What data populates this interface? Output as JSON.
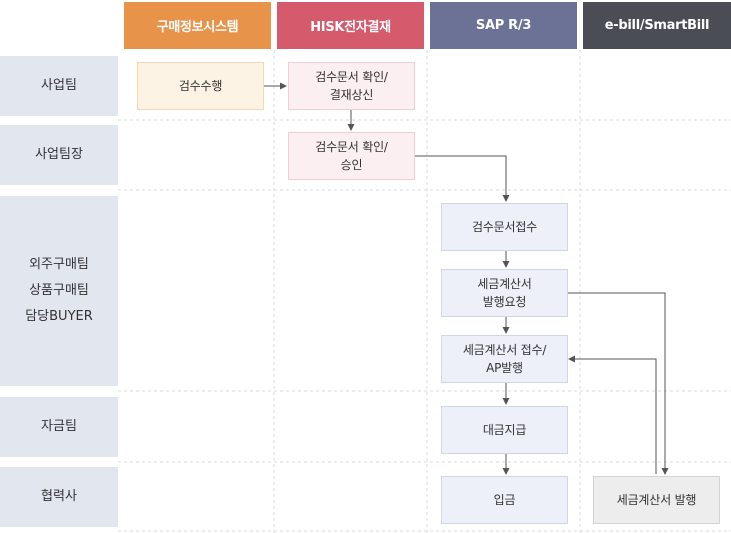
{
  "columns": [
    {
      "label": "구매정보시스템",
      "color": "#e8934a"
    },
    {
      "label": "HISK전자결재",
      "color": "#d55a6c"
    },
    {
      "label": "SAP R/3",
      "color": "#6c7196"
    },
    {
      "label": "e-bill/SmartBill",
      "color": "#4b4d55"
    }
  ],
  "rows": [
    {
      "lines": [
        "사업팀"
      ]
    },
    {
      "lines": [
        "사업팀장"
      ]
    },
    {
      "lines": [
        "외주구매팀",
        "상품구매팀",
        "담당BUYER"
      ]
    },
    {
      "lines": [
        "자금팀"
      ]
    },
    {
      "lines": [
        "협력사"
      ]
    }
  ],
  "steps": {
    "inspection": "검수수행",
    "confirm_approval_request": "검수문서 확인/\n결재상신",
    "confirm_approval": "검수문서 확인/\n승인",
    "receipt": "검수문서접수",
    "invoice_request": "세금계산서\n발행요청",
    "invoice_receipt_ap": "세금계산서 접수/\nAP발행",
    "payment": "대금지급",
    "deposit": "입금",
    "invoice_issue": "세금계산서 발행"
  },
  "colors": {
    "grid_line": "#d8dbe3",
    "arrow": "#555555"
  }
}
